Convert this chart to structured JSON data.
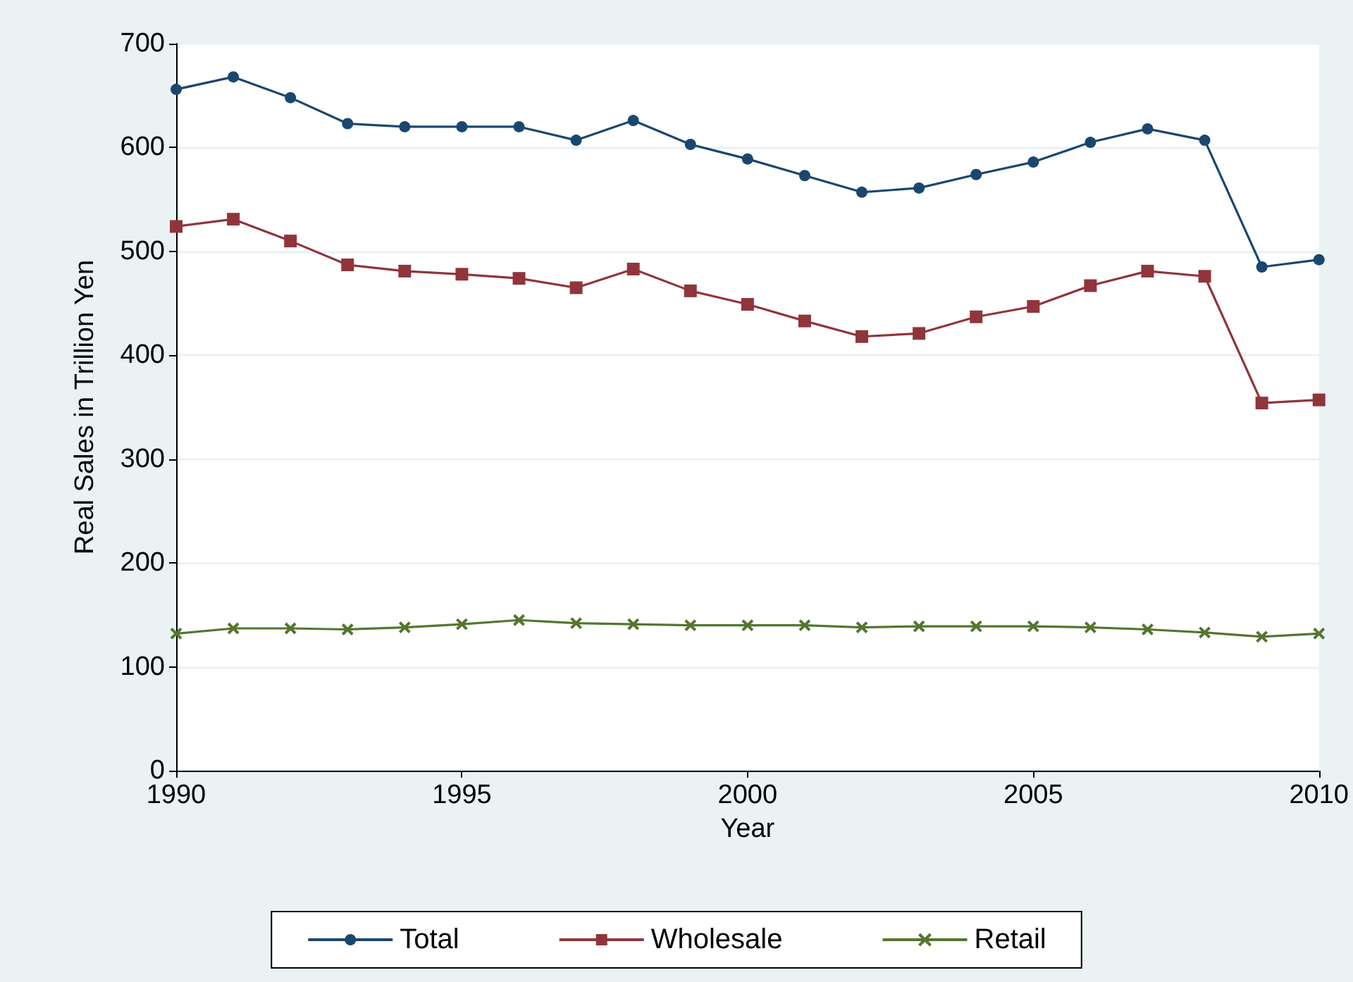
{
  "chart_data": {
    "type": "line",
    "xlabel": "Year",
    "ylabel": "Real Sales in Trillion Yen",
    "x": [
      1990,
      1991,
      1992,
      1993,
      1994,
      1995,
      1996,
      1997,
      1998,
      1999,
      2000,
      2001,
      2002,
      2003,
      2004,
      2005,
      2006,
      2007,
      2008,
      2009,
      2010
    ],
    "series": [
      {
        "name": "Total",
        "color": "#1a476f",
        "marker": "circle",
        "values": [
          656,
          668,
          648,
          623,
          620,
          620,
          620,
          607,
          626,
          603,
          589,
          573,
          557,
          561,
          574,
          586,
          605,
          618,
          607,
          485,
          492
        ]
      },
      {
        "name": "Wholesale",
        "color": "#90353b",
        "marker": "square",
        "values": [
          524,
          531,
          510,
          487,
          481,
          478,
          474,
          465,
          483,
          462,
          449,
          433,
          418,
          421,
          437,
          447,
          467,
          481,
          476,
          354,
          357
        ]
      },
      {
        "name": "Retail",
        "color": "#55752f",
        "marker": "cross",
        "values": [
          132,
          137,
          137,
          136,
          138,
          141,
          145,
          142,
          141,
          140,
          140,
          140,
          138,
          139,
          139,
          139,
          138,
          136,
          133,
          129,
          132
        ]
      }
    ],
    "xlim": [
      1990,
      2010
    ],
    "xticks": [
      1990,
      1995,
      2000,
      2005,
      2010
    ],
    "ylim": [
      0,
      700
    ],
    "yticks": [
      0,
      100,
      200,
      300,
      400,
      500,
      600,
      700
    ],
    "grid": "y",
    "legend": "bottom"
  }
}
